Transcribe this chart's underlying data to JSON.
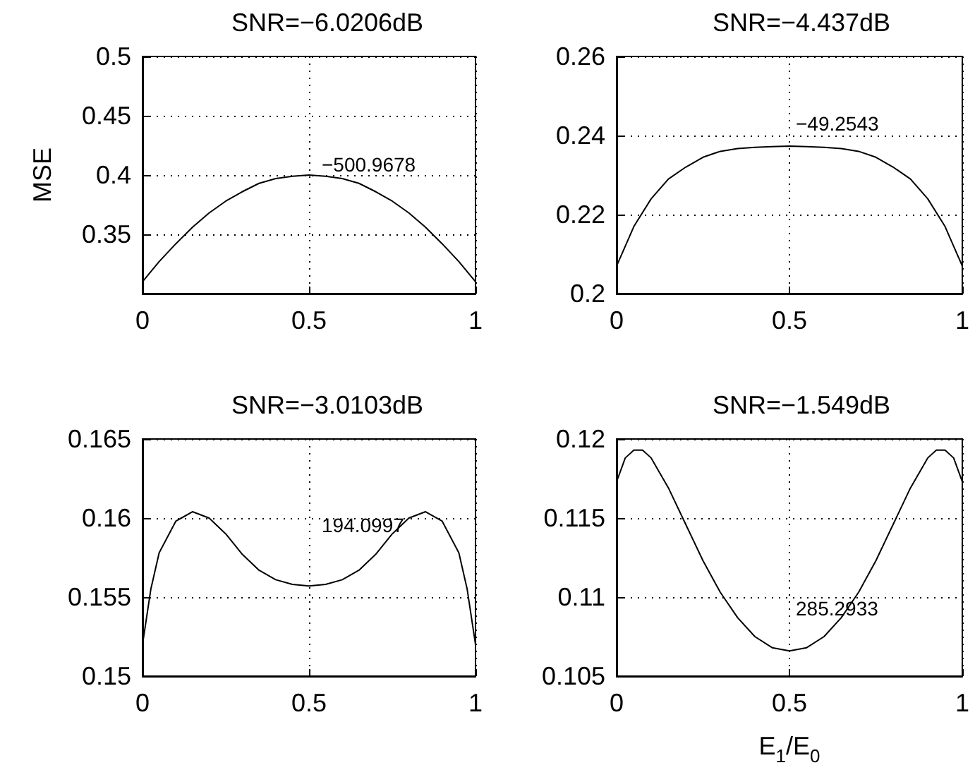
{
  "chart_data": [
    {
      "type": "line",
      "title": "SNR=−6.0206dB",
      "ylabel": "MSE",
      "xlim": [
        0,
        1
      ],
      "ylim": [
        0.3,
        0.5
      ],
      "xticks": [
        0,
        0.5,
        1
      ],
      "yticks": [
        0.35,
        0.4,
        0.45,
        0.5
      ],
      "grid": true,
      "x": [
        0,
        0.05,
        0.1,
        0.15,
        0.2,
        0.25,
        0.3,
        0.35,
        0.4,
        0.45,
        0.5,
        0.55,
        0.6,
        0.65,
        0.7,
        0.75,
        0.8,
        0.85,
        0.9,
        0.95,
        1
      ],
      "series": [
        {
          "color": "#000000",
          "values": [
            0.31,
            0.327,
            0.342,
            0.356,
            0.368,
            0.378,
            0.386,
            0.393,
            0.397,
            0.399,
            0.4,
            0.399,
            0.397,
            0.393,
            0.386,
            0.378,
            0.368,
            0.356,
            0.342,
            0.327,
            0.31
          ]
        }
      ],
      "annotations": [
        "−500.9678"
      ]
    },
    {
      "type": "line",
      "title": "SNR=−4.437dB",
      "xlim": [
        0,
        1
      ],
      "ylim": [
        0.2,
        0.26
      ],
      "xticks": [
        0,
        0.5,
        1
      ],
      "yticks": [
        0.2,
        0.22,
        0.24,
        0.26
      ],
      "grid": true,
      "x": [
        0,
        0.05,
        0.1,
        0.15,
        0.2,
        0.25,
        0.3,
        0.35,
        0.4,
        0.45,
        0.5,
        0.55,
        0.6,
        0.65,
        0.7,
        0.75,
        0.8,
        0.85,
        0.9,
        0.95,
        1
      ],
      "series": [
        {
          "color": "#000000",
          "values": [
            0.207,
            0.217,
            0.224,
            0.229,
            0.232,
            0.2345,
            0.236,
            0.2367,
            0.237,
            0.2372,
            0.2373,
            0.2372,
            0.237,
            0.2367,
            0.236,
            0.2345,
            0.232,
            0.229,
            0.224,
            0.217,
            0.207
          ]
        }
      ],
      "annotations": [
        "−49.2543"
      ]
    },
    {
      "type": "line",
      "title": "SNR=−3.0103dB",
      "xlim": [
        0,
        1
      ],
      "ylim": [
        0.15,
        0.165
      ],
      "xticks": [
        0,
        0.5,
        1
      ],
      "yticks": [
        0.15,
        0.155,
        0.16,
        0.165
      ],
      "grid": true,
      "x": [
        0,
        0.025,
        0.05,
        0.1,
        0.15,
        0.2,
        0.25,
        0.3,
        0.35,
        0.4,
        0.45,
        0.5,
        0.55,
        0.6,
        0.65,
        0.7,
        0.75,
        0.8,
        0.85,
        0.9,
        0.95,
        0.975,
        1
      ],
      "series": [
        {
          "color": "#000000",
          "values": [
            0.152,
            0.1555,
            0.1578,
            0.1598,
            0.1604,
            0.16,
            0.159,
            0.1577,
            0.1567,
            0.1561,
            0.1558,
            0.1557,
            0.1558,
            0.1561,
            0.1567,
            0.1577,
            0.159,
            0.16,
            0.1604,
            0.1598,
            0.1578,
            0.1555,
            0.152
          ]
        }
      ],
      "annotations": [
        "194.0997"
      ]
    },
    {
      "type": "line",
      "title": "SNR=−1.549dB",
      "xlabel": "E$_{1}$/E$_{0}$",
      "xlim": [
        0,
        1
      ],
      "ylim": [
        0.105,
        0.12
      ],
      "xticks": [
        0,
        0.5,
        1
      ],
      "yticks": [
        0.105,
        0.11,
        0.115,
        0.12
      ],
      "grid": true,
      "x": [
        0,
        0.025,
        0.05,
        0.075,
        0.1,
        0.15,
        0.2,
        0.25,
        0.3,
        0.35,
        0.4,
        0.45,
        0.5,
        0.55,
        0.6,
        0.65,
        0.7,
        0.75,
        0.8,
        0.85,
        0.9,
        0.925,
        0.95,
        0.975,
        1
      ],
      "series": [
        {
          "color": "#000000",
          "values": [
            0.1173,
            0.1188,
            0.1193,
            0.1193,
            0.1188,
            0.1169,
            0.1146,
            0.1123,
            0.1103,
            0.1087,
            0.1075,
            0.1068,
            0.1066,
            0.1068,
            0.1075,
            0.1087,
            0.1103,
            0.1123,
            0.1146,
            0.1169,
            0.1188,
            0.1193,
            0.1193,
            0.1188,
            0.1173
          ]
        }
      ],
      "annotations": [
        "285.2933"
      ]
    }
  ]
}
